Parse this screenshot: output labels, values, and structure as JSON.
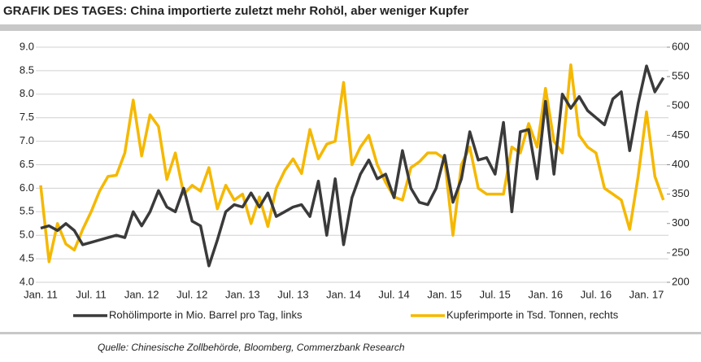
{
  "chart_data": {
    "type": "line",
    "title": "GRAFIK DES TAGES: China importierte zuletzt mehr Rohöl, aber weniger Kupfer",
    "source": "Quelle: Chinesische Zollbehörde, Bloomberg, Commerzbank Research",
    "categories": [
      "Jan. 11",
      null,
      null,
      null,
      null,
      null,
      "Jul. 11",
      null,
      null,
      null,
      null,
      null,
      "Jan. 12",
      null,
      null,
      null,
      null,
      null,
      "Jul. 12",
      null,
      null,
      null,
      null,
      null,
      "Jan. 13",
      null,
      null,
      null,
      null,
      null,
      "Jul. 13",
      null,
      null,
      null,
      null,
      null,
      "Jan. 14",
      null,
      null,
      null,
      null,
      null,
      "Jul. 14",
      null,
      null,
      null,
      null,
      null,
      "Jan. 15",
      null,
      null,
      null,
      null,
      null,
      "Jul. 15",
      null,
      null,
      null,
      null,
      null,
      "Jan. 16",
      null,
      null,
      null,
      null,
      null,
      "Jul. 16",
      null,
      null,
      null,
      null,
      null,
      "Jan. 17",
      null,
      null
    ],
    "series": [
      {
        "name": "Rohölimporte in Mio. Barrel pro Tag, links",
        "color": "#3a3a3a",
        "axis": "y",
        "values": [
          5.15,
          5.2,
          5.1,
          5.25,
          5.1,
          4.8,
          4.85,
          4.9,
          4.95,
          5.0,
          4.95,
          5.5,
          5.2,
          5.5,
          5.95,
          5.6,
          5.5,
          6.0,
          5.3,
          5.2,
          4.35,
          4.9,
          5.5,
          5.65,
          5.6,
          5.9,
          5.6,
          5.9,
          5.4,
          5.5,
          5.6,
          5.65,
          5.4,
          6.15,
          5.0,
          6.2,
          4.8,
          5.8,
          6.3,
          6.6,
          6.2,
          6.3,
          5.8,
          6.8,
          6.0,
          5.7,
          5.65,
          6.0,
          6.7,
          5.7,
          6.2,
          7.2,
          6.6,
          6.65,
          6.3,
          7.4,
          5.5,
          7.2,
          7.25,
          6.2,
          7.85,
          6.3,
          8.0,
          7.7,
          7.95,
          7.65,
          7.5,
          7.35,
          7.9,
          8.05,
          6.8,
          7.8,
          8.6,
          8.05,
          8.35
        ]
      },
      {
        "name": "Kupferimporte in Tsd. Tonnen, rechts",
        "color": "#f5b800",
        "axis": "y2",
        "values": [
          365,
          235,
          300,
          265,
          255,
          290,
          320,
          355,
          380,
          382,
          420,
          510,
          415,
          485,
          465,
          375,
          420,
          350,
          365,
          355,
          395,
          325,
          365,
          340,
          350,
          300,
          345,
          295,
          360,
          390,
          410,
          385,
          460,
          410,
          435,
          440,
          540,
          400,
          430,
          450,
          400,
          370,
          345,
          340,
          395,
          405,
          420,
          420,
          410,
          280,
          400,
          430,
          360,
          350,
          350,
          350,
          430,
          420,
          470,
          430,
          530,
          440,
          420,
          570,
          450,
          430,
          420,
          360,
          350,
          340,
          290,
          380,
          490,
          380,
          340
        ]
      }
    ],
    "ylim": [
      4.0,
      9.0
    ],
    "yticks": [
      {
        "value": 4,
        "label": "4.0"
      },
      4.5,
      {
        "value": 5,
        "label": "5.0"
      },
      5.5,
      {
        "value": 6,
        "label": "6.0"
      },
      6.5,
      {
        "value": 7,
        "label": "7.0"
      },
      7.5,
      {
        "value": 8,
        "label": "8.0"
      },
      8.5,
      {
        "value": 9,
        "label": "9.0"
      }
    ],
    "y2lim": [
      200,
      600
    ],
    "y2ticks": [
      200,
      250,
      300,
      350,
      400,
      450,
      500,
      550,
      600
    ],
    "grid": true
  }
}
